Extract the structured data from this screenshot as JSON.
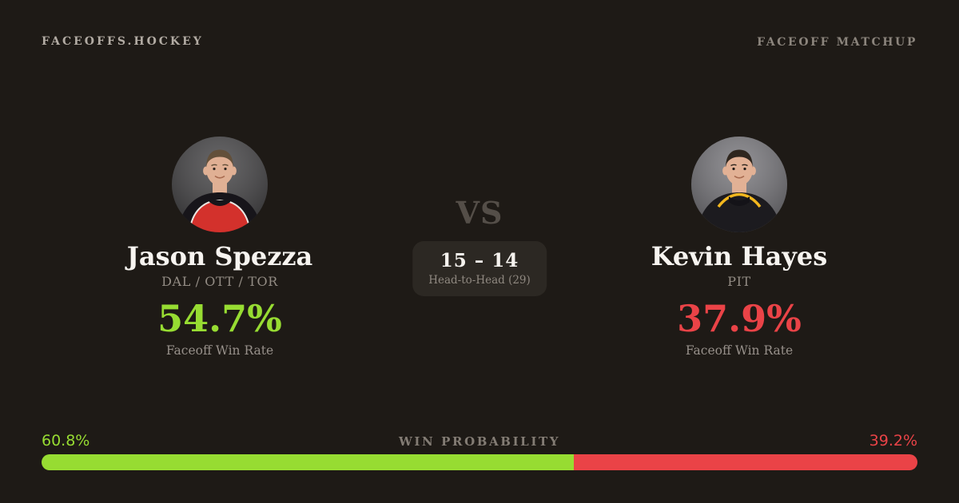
{
  "colors": {
    "background": "#1e1a16",
    "box_background": "#2c2823",
    "green": "#97dc32",
    "red": "#ea4347",
    "white_text": "#f7f4f0",
    "muted_text": "#938c84"
  },
  "header": {
    "brand": "FACEOFFS.HOCKEY",
    "page_label": "FACEOFF MATCHUP"
  },
  "matchup": {
    "vs_label": "VS",
    "head_to_head_score": "15 – 14",
    "head_to_head_label": "Head-to-Head (29)"
  },
  "players": [
    {
      "name": "Jason Spezza",
      "teams": "DAL / OTT / TOR",
      "win_rate": "54.7%",
      "win_rate_label": "Faceoff Win Rate",
      "accent_color": "#97dc32",
      "avatar": {
        "bg": "#403f41",
        "jersey": "#d3312c",
        "shoulder": "#17151a",
        "trim": "#e9e6e2",
        "skin": "#e0b094",
        "hair": "#63503a"
      }
    },
    {
      "name": "Kevin Hayes",
      "teams": "PIT",
      "win_rate": "37.9%",
      "win_rate_label": "Faceoff Win Rate",
      "accent_color": "#ea4347",
      "avatar": {
        "bg": "#737277",
        "jersey": "#1c1b1f",
        "shoulder": "#141318",
        "trim": "#f3b71e",
        "skin": "#e2b195",
        "hair": "#2f261e"
      }
    }
  ],
  "win_probability": {
    "label": "WIN PROBABILITY",
    "left_label": "60.8%",
    "right_label": "39.2%",
    "left_value": 60.8,
    "right_value": 39.2,
    "left_color": "#97dc32",
    "right_color": "#ea4347"
  }
}
